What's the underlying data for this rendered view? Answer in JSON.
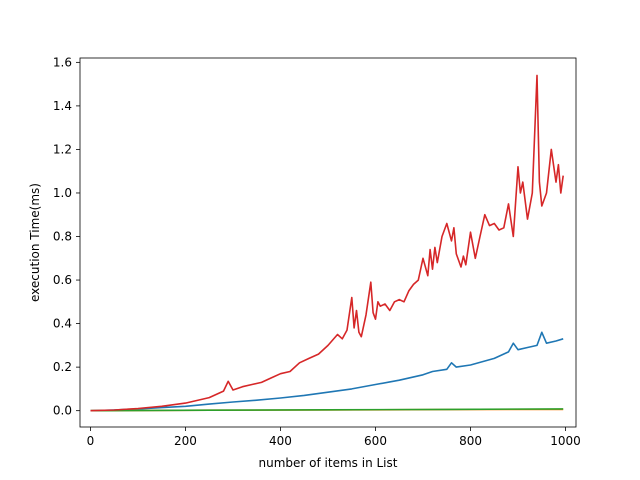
{
  "chart_data": {
    "type": "line",
    "title": "",
    "xlabel": "number of items in List",
    "ylabel": "execution Time(ms)",
    "xlim": [
      -22,
      1022
    ],
    "ylim": [
      -0.075,
      1.62
    ],
    "xticks": [
      0,
      200,
      400,
      600,
      800,
      1000
    ],
    "xtick_labels": [
      "0",
      "200",
      "400",
      "600",
      "800",
      "1000"
    ],
    "yticks": [
      0.0,
      0.2,
      0.4,
      0.6,
      0.8,
      1.0,
      1.2,
      1.4,
      1.6
    ],
    "ytick_labels": [
      "0.0",
      "0.2",
      "0.4",
      "0.6",
      "0.8",
      "1.0",
      "1.2",
      "1.4",
      "1.6"
    ],
    "grid": false,
    "legend": "none",
    "series": [
      {
        "color": "#1f77b4",
        "x": [
          0,
          50,
          100,
          150,
          200,
          250,
          300,
          350,
          400,
          450,
          500,
          550,
          600,
          650,
          700,
          720,
          750,
          760,
          770,
          800,
          850,
          880,
          890,
          900,
          920,
          940,
          950,
          960,
          980,
          995
        ],
        "y": [
          0.0,
          0.003,
          0.008,
          0.014,
          0.02,
          0.03,
          0.04,
          0.048,
          0.058,
          0.07,
          0.085,
          0.1,
          0.12,
          0.14,
          0.165,
          0.18,
          0.19,
          0.22,
          0.2,
          0.21,
          0.24,
          0.27,
          0.31,
          0.28,
          0.29,
          0.3,
          0.36,
          0.31,
          0.32,
          0.33
        ]
      },
      {
        "color": "#ff7f0e",
        "x": [
          0,
          250,
          500,
          750,
          995
        ],
        "y": [
          0.0,
          0.002,
          0.003,
          0.005,
          0.006
        ]
      },
      {
        "color": "#2ca02c",
        "x": [
          0,
          250,
          500,
          750,
          995
        ],
        "y": [
          0.0,
          0.002,
          0.004,
          0.006,
          0.008
        ]
      },
      {
        "color": "#d62728",
        "x": [
          0,
          50,
          100,
          150,
          200,
          250,
          280,
          290,
          300,
          320,
          340,
          360,
          380,
          400,
          420,
          440,
          460,
          480,
          500,
          520,
          530,
          540,
          550,
          555,
          560,
          565,
          570,
          580,
          590,
          595,
          600,
          605,
          610,
          620,
          630,
          640,
          650,
          660,
          670,
          680,
          690,
          700,
          710,
          715,
          720,
          725,
          730,
          740,
          750,
          760,
          765,
          770,
          780,
          785,
          790,
          800,
          810,
          820,
          830,
          840,
          850,
          860,
          870,
          880,
          890,
          900,
          905,
          910,
          920,
          930,
          940,
          945,
          950,
          960,
          970,
          980,
          985,
          990,
          995
        ],
        "y": [
          0.0,
          0.003,
          0.01,
          0.02,
          0.035,
          0.06,
          0.09,
          0.135,
          0.095,
          0.11,
          0.12,
          0.13,
          0.15,
          0.17,
          0.18,
          0.22,
          0.24,
          0.26,
          0.3,
          0.35,
          0.33,
          0.37,
          0.52,
          0.38,
          0.46,
          0.36,
          0.34,
          0.44,
          0.59,
          0.45,
          0.42,
          0.5,
          0.48,
          0.49,
          0.46,
          0.5,
          0.51,
          0.5,
          0.55,
          0.58,
          0.6,
          0.7,
          0.62,
          0.74,
          0.65,
          0.75,
          0.68,
          0.8,
          0.86,
          0.78,
          0.84,
          0.72,
          0.66,
          0.71,
          0.67,
          0.82,
          0.7,
          0.8,
          0.9,
          0.85,
          0.86,
          0.83,
          0.84,
          0.95,
          0.8,
          1.12,
          1.0,
          1.05,
          0.88,
          1.0,
          1.54,
          1.05,
          0.94,
          1.0,
          1.2,
          1.05,
          1.13,
          1.0,
          1.08
        ]
      }
    ]
  }
}
